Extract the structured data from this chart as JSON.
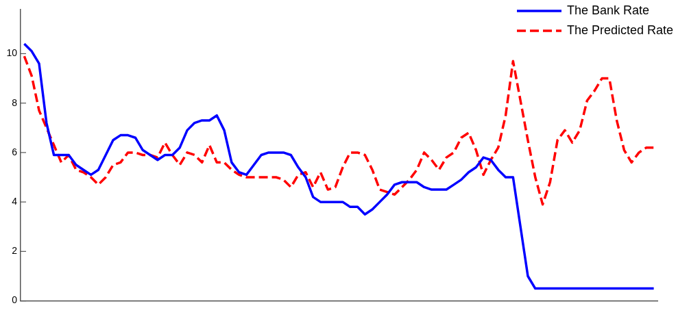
{
  "chart_data": {
    "type": "line",
    "categories": [
      null,
      null,
      null,
      null,
      null,
      null,
      null,
      null,
      null,
      null,
      null,
      null,
      null,
      null,
      null,
      null,
      null,
      null,
      null,
      null,
      null,
      null,
      null,
      null,
      null,
      null,
      null,
      null,
      null,
      null,
      null,
      null,
      null,
      null,
      null,
      null,
      null,
      null,
      null,
      null,
      null,
      null,
      null,
      null,
      null,
      null,
      null,
      null,
      null,
      null,
      null,
      null,
      null,
      null,
      null,
      null,
      null,
      null,
      null,
      null,
      null,
      null,
      null,
      null,
      null,
      null,
      null,
      null,
      null,
      null,
      null,
      null,
      null,
      null,
      null,
      null,
      null,
      null,
      null,
      null,
      null,
      null,
      null,
      null,
      null,
      null
    ],
    "ylim": [
      0,
      11.8
    ],
    "yticks": [
      0,
      2,
      4,
      6,
      8,
      10
    ],
    "tick_labels": "y",
    "legend": "top right",
    "series": [
      {
        "name": "The Bank Rate",
        "color": "#0000ff",
        "line_style": "solid",
        "values": [
          10.4,
          10.1,
          9.6,
          7.2,
          5.9,
          5.9,
          5.9,
          5.5,
          5.3,
          5.1,
          5.3,
          5.9,
          6.5,
          6.7,
          6.7,
          6.6,
          6.1,
          5.9,
          5.7,
          5.9,
          5.9,
          6.2,
          6.9,
          7.2,
          7.3,
          7.3,
          7.5,
          6.9,
          5.6,
          5.2,
          5.1,
          5.5,
          5.9,
          6.0,
          6.0,
          6.0,
          5.9,
          5.4,
          5.0,
          4.2,
          4.0,
          4.0,
          4.0,
          4.0,
          3.8,
          3.8,
          3.5,
          3.7,
          4.0,
          4.3,
          4.7,
          4.8,
          4.8,
          4.8,
          4.6,
          4.5,
          4.5,
          4.5,
          4.7,
          4.9,
          5.2,
          5.4,
          5.8,
          5.7,
          5.3,
          5.0,
          5.0,
          3.0,
          1.0,
          0.5,
          0.5,
          0.5,
          0.5,
          0.5,
          0.5,
          0.5,
          0.5,
          0.5,
          0.5,
          0.5,
          0.5,
          0.5,
          0.5,
          0.5,
          0.5,
          0.5
        ]
      },
      {
        "name": "The Predicted Rate",
        "color": "#ff0000",
        "line_style": "dashed",
        "values": [
          9.9,
          9.1,
          7.7,
          7.0,
          6.3,
          5.6,
          5.9,
          5.3,
          5.2,
          5.0,
          4.7,
          5.0,
          5.5,
          5.6,
          6.0,
          6.0,
          5.9,
          5.9,
          5.8,
          6.4,
          5.9,
          5.5,
          6.0,
          5.9,
          5.6,
          6.3,
          5.6,
          5.6,
          5.3,
          5.1,
          5.0,
          5.0,
          5.0,
          5.0,
          5.0,
          4.9,
          4.6,
          5.1,
          5.2,
          4.6,
          5.2,
          4.5,
          4.6,
          5.4,
          6.0,
          6.0,
          5.9,
          5.3,
          4.5,
          4.4,
          4.3,
          4.6,
          4.9,
          5.3,
          6.0,
          5.7,
          5.3,
          5.8,
          6.0,
          6.6,
          6.8,
          6.1,
          5.1,
          5.7,
          6.2,
          7.5,
          9.7,
          8.1,
          6.5,
          5.0,
          3.9,
          4.8,
          6.5,
          6.9,
          6.4,
          6.9,
          8.1,
          8.5,
          9.0,
          9.0,
          7.3,
          6.1,
          5.6,
          6.0,
          6.2,
          6.2
        ]
      }
    ]
  }
}
